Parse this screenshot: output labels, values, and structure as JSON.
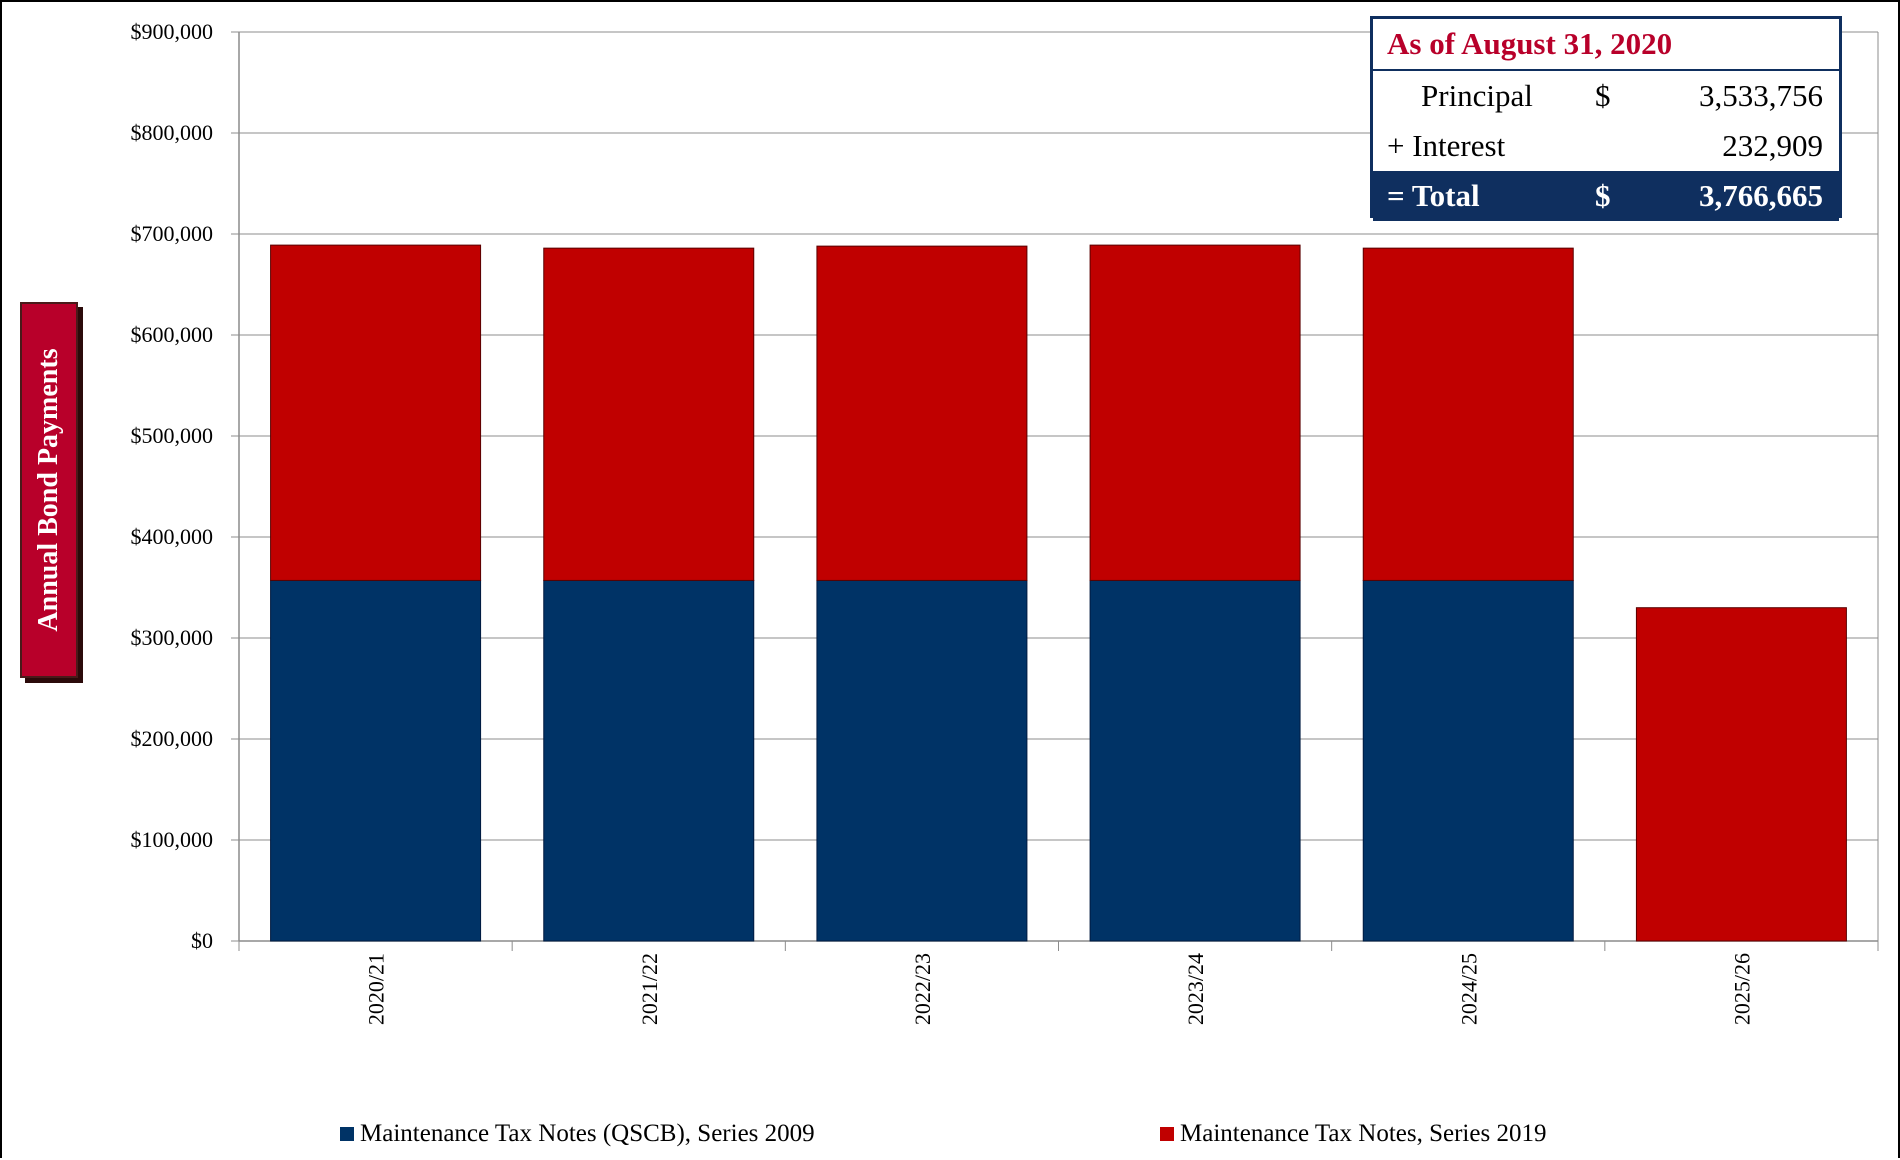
{
  "chart_data": {
    "type": "bar",
    "stacked": true,
    "categories": [
      "2020/21",
      "2021/22",
      "2022/23",
      "2023/24",
      "2024/25",
      "2025/26"
    ],
    "series": [
      {
        "name": "Maintenance Tax Notes (QSCB), Series 2009",
        "color": "#003366",
        "values": [
          357000,
          357000,
          357000,
          357000,
          357000,
          0
        ]
      },
      {
        "name": "Maintenance Tax Notes, Series 2019",
        "color": "#c00000",
        "values": [
          332000,
          329000,
          331000,
          332000,
          329000,
          330000
        ]
      }
    ],
    "ylim": [
      0,
      900000
    ],
    "yticks": [
      0,
      100000,
      200000,
      300000,
      400000,
      500000,
      600000,
      700000,
      800000,
      900000
    ],
    "ytick_labels": [
      "$0",
      "$100,000",
      "$200,000",
      "$300,000",
      "$400,000",
      "$500,000",
      "$600,000",
      "$700,000",
      "$800,000",
      "$900,000"
    ],
    "ylabel": "Annual Bond Payments",
    "grid": true,
    "legend_position": "bottom"
  },
  "summary_box": {
    "title": "As of August 31, 2020",
    "rows": [
      {
        "label": "Principal",
        "currency": "$",
        "value": "3,533,756"
      },
      {
        "label": "+ Interest",
        "currency": "",
        "value": "232,909"
      },
      {
        "label": "= Total",
        "currency": "$",
        "value": "3,766,665"
      }
    ]
  },
  "colors": {
    "accent_red": "#b8002a",
    "navy": "#0f2f5f"
  }
}
